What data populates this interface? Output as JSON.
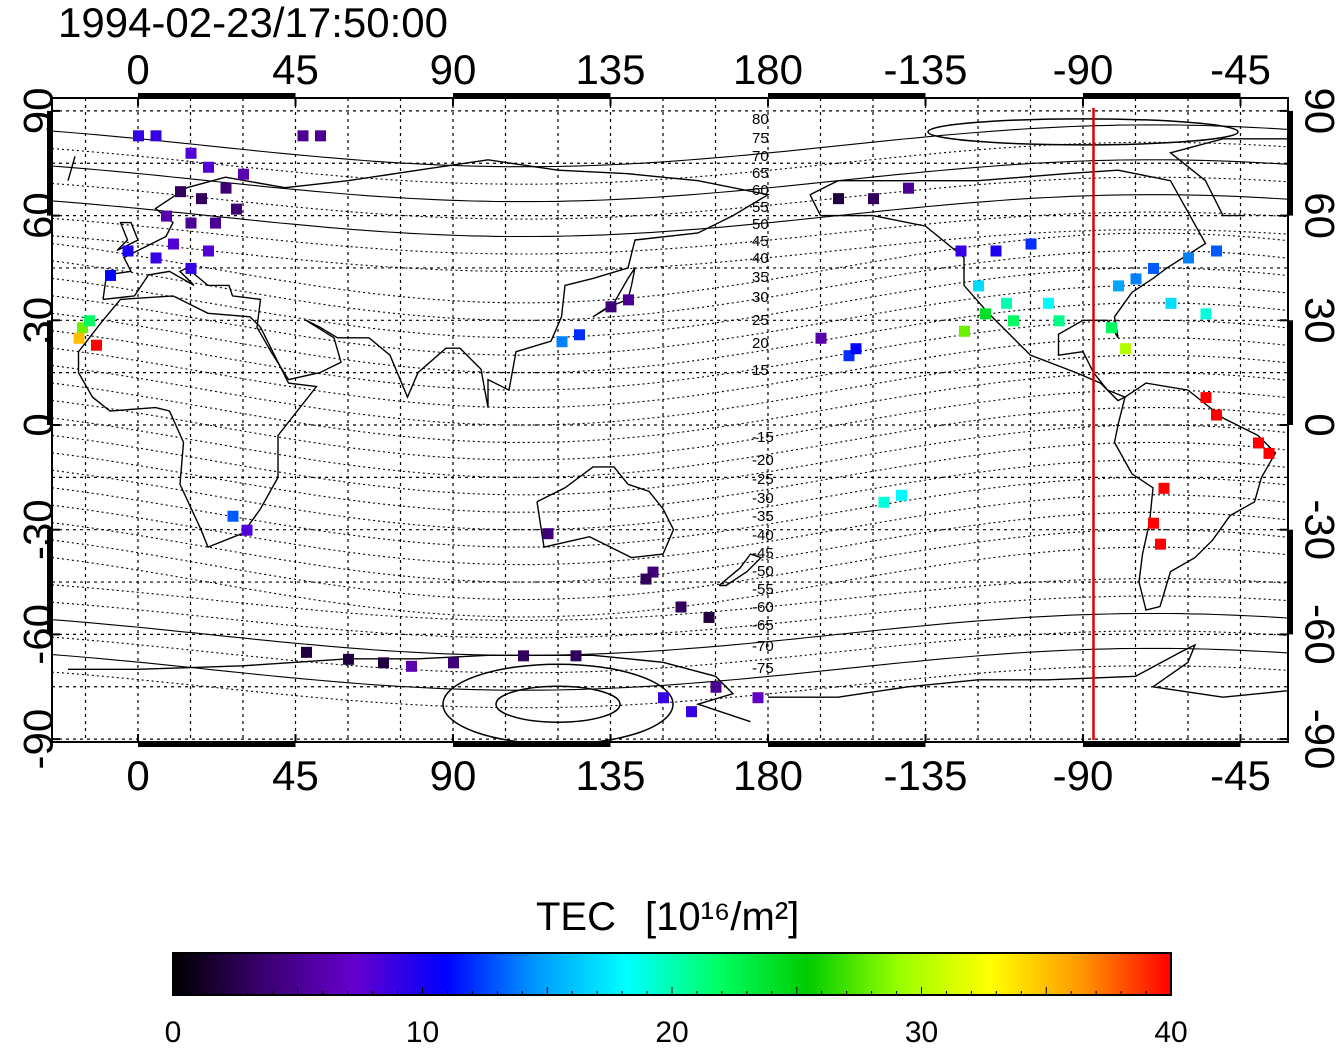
{
  "title": "1994-02-23/17:50:00",
  "map": {
    "lon_ticks": [
      "0",
      "45",
      "90",
      "135",
      "180",
      "-135",
      "-90",
      "-45"
    ],
    "lat_ticks": [
      "90",
      "60",
      "30",
      "0",
      "-30",
      "-60",
      "-90"
    ],
    "contour_labels_north": [
      "80",
      "75",
      "70",
      "65",
      "60",
      "55",
      "50",
      "45",
      "40",
      "35",
      "30",
      "25",
      "20",
      "15"
    ],
    "contour_labels_south": [
      "-15",
      "-20",
      "-25",
      "-30",
      "-35",
      "-40",
      "-45",
      "-50",
      "-55",
      "-60",
      "-65",
      "-70",
      "-75"
    ],
    "marker_longitude": -87,
    "marker_color": "#e00000"
  },
  "colorbar": {
    "title": "TEC",
    "unit": "[10¹⁶/m²]",
    "min": 0,
    "max": 40,
    "tick_labels": [
      "0",
      "10",
      "20",
      "30",
      "40"
    ],
    "colors": [
      "#000000",
      "#3a0070",
      "#6600cc",
      "#0000ff",
      "#0099ff",
      "#00ffff",
      "#00ff66",
      "#00cc00",
      "#99ff00",
      "#ffff00",
      "#ff9900",
      "#ff0000"
    ]
  },
  "chart_data": {
    "type": "heatmap",
    "title": "1994-02-23/17:50:00",
    "value_label": "TEC [10^16/m^2]",
    "value_range": [
      0,
      40
    ],
    "points": [
      {
        "lon": 0,
        "lat": 83,
        "tec": 9
      },
      {
        "lon": 5,
        "lat": 83,
        "tec": 9
      },
      {
        "lon": 15,
        "lat": 78,
        "tec": 8
      },
      {
        "lon": 20,
        "lat": 74,
        "tec": 8
      },
      {
        "lon": 30,
        "lat": 72,
        "tec": 6
      },
      {
        "lon": 12,
        "lat": 67,
        "tec": 3
      },
      {
        "lon": 18,
        "lat": 65,
        "tec": 3
      },
      {
        "lon": 25,
        "lat": 68,
        "tec": 4
      },
      {
        "lon": 8,
        "lat": 60,
        "tec": 6
      },
      {
        "lon": 15,
        "lat": 58,
        "tec": 5
      },
      {
        "lon": 22,
        "lat": 58,
        "tec": 5
      },
      {
        "lon": 28,
        "lat": 62,
        "tec": 4
      },
      {
        "lon": 10,
        "lat": 52,
        "tec": 8
      },
      {
        "lon": 20,
        "lat": 50,
        "tec": 8
      },
      {
        "lon": 5,
        "lat": 48,
        "tec": 9
      },
      {
        "lon": -3,
        "lat": 50,
        "tec": 10
      },
      {
        "lon": 15,
        "lat": 45,
        "tec": 9
      },
      {
        "lon": -8,
        "lat": 43,
        "tec": 11
      },
      {
        "lon": 47,
        "lat": 83,
        "tec": 5
      },
      {
        "lon": 52,
        "lat": 83,
        "tec": 5
      },
      {
        "lon": -16,
        "lat": 28,
        "tec": 28
      },
      {
        "lon": -14,
        "lat": 30,
        "tec": 22
      },
      {
        "lon": -17,
        "lat": 25,
        "tec": 35
      },
      {
        "lon": -12,
        "lat": 23,
        "tec": 40
      },
      {
        "lon": 27,
        "lat": -26,
        "tec": 13
      },
      {
        "lon": 31,
        "lat": -30,
        "tec": 8
      },
      {
        "lon": 140,
        "lat": 36,
        "tec": 5
      },
      {
        "lon": 135,
        "lat": 34,
        "tec": 4
      },
      {
        "lon": 126,
        "lat": 26,
        "tec": 12
      },
      {
        "lon": 121,
        "lat": 24,
        "tec": 14
      },
      {
        "lon": 117,
        "lat": -31,
        "tec": 4
      },
      {
        "lon": 147,
        "lat": -42,
        "tec": 4
      },
      {
        "lon": 145,
        "lat": -44,
        "tec": 3
      },
      {
        "lon": 155,
        "lat": -52,
        "tec": 3
      },
      {
        "lon": 163,
        "lat": -55,
        "tec": 2
      },
      {
        "lon": 48,
        "lat": -65,
        "tec": 2
      },
      {
        "lon": 60,
        "lat": -67,
        "tec": 2
      },
      {
        "lon": 70,
        "lat": -68,
        "tec": 2
      },
      {
        "lon": 78,
        "lat": -69,
        "tec": 6
      },
      {
        "lon": 90,
        "lat": -68,
        "tec": 4
      },
      {
        "lon": 110,
        "lat": -66,
        "tec": 3
      },
      {
        "lon": 125,
        "lat": -66,
        "tec": 3
      },
      {
        "lon": 150,
        "lat": -78,
        "tec": 9
      },
      {
        "lon": 158,
        "lat": -82,
        "tec": 9
      },
      {
        "lon": 165,
        "lat": -75,
        "tec": 5
      },
      {
        "lon": 177,
        "lat": -78,
        "tec": 7
      },
      {
        "lon": -157,
        "lat": 20,
        "tec": 12
      },
      {
        "lon": -155,
        "lat": 22,
        "tec": 11
      },
      {
        "lon": -165,
        "lat": 25,
        "tec": 6
      },
      {
        "lon": -147,
        "lat": -22,
        "tec": 19
      },
      {
        "lon": -142,
        "lat": -20,
        "tec": 18
      },
      {
        "lon": -150,
        "lat": 65,
        "tec": 3
      },
      {
        "lon": -160,
        "lat": 65,
        "tec": 2
      },
      {
        "lon": -140,
        "lat": 68,
        "tec": 5
      },
      {
        "lon": -125,
        "lat": 50,
        "tec": 9
      },
      {
        "lon": -115,
        "lat": 50,
        "tec": 10
      },
      {
        "lon": -105,
        "lat": 52,
        "tec": 12
      },
      {
        "lon": -120,
        "lat": 40,
        "tec": 17
      },
      {
        "lon": -112,
        "lat": 35,
        "tec": 20
      },
      {
        "lon": -100,
        "lat": 35,
        "tec": 18
      },
      {
        "lon": -118,
        "lat": 32,
        "tec": 24
      },
      {
        "lon": -110,
        "lat": 30,
        "tec": 22
      },
      {
        "lon": -124,
        "lat": 27,
        "tec": 28
      },
      {
        "lon": -97,
        "lat": 30,
        "tec": 21
      },
      {
        "lon": -80,
        "lat": 40,
        "tec": 15
      },
      {
        "lon": -75,
        "lat": 42,
        "tec": 14
      },
      {
        "lon": -70,
        "lat": 45,
        "tec": 13
      },
      {
        "lon": -60,
        "lat": 48,
        "tec": 14
      },
      {
        "lon": -52,
        "lat": 50,
        "tec": 13
      },
      {
        "lon": -65,
        "lat": 35,
        "tec": 17
      },
      {
        "lon": -55,
        "lat": 32,
        "tec": 19
      },
      {
        "lon": -82,
        "lat": 28,
        "tec": 22
      },
      {
        "lon": -78,
        "lat": 22,
        "tec": 30
      },
      {
        "lon": -55,
        "lat": 8,
        "tec": 40
      },
      {
        "lon": -52,
        "lat": 3,
        "tec": 40
      },
      {
        "lon": -40,
        "lat": -5,
        "tec": 40
      },
      {
        "lon": -37,
        "lat": -8,
        "tec": 40
      },
      {
        "lon": -67,
        "lat": -18,
        "tec": 40
      },
      {
        "lon": -70,
        "lat": -28,
        "tec": 40
      },
      {
        "lon": -68,
        "lat": -34,
        "tec": 40
      }
    ]
  }
}
